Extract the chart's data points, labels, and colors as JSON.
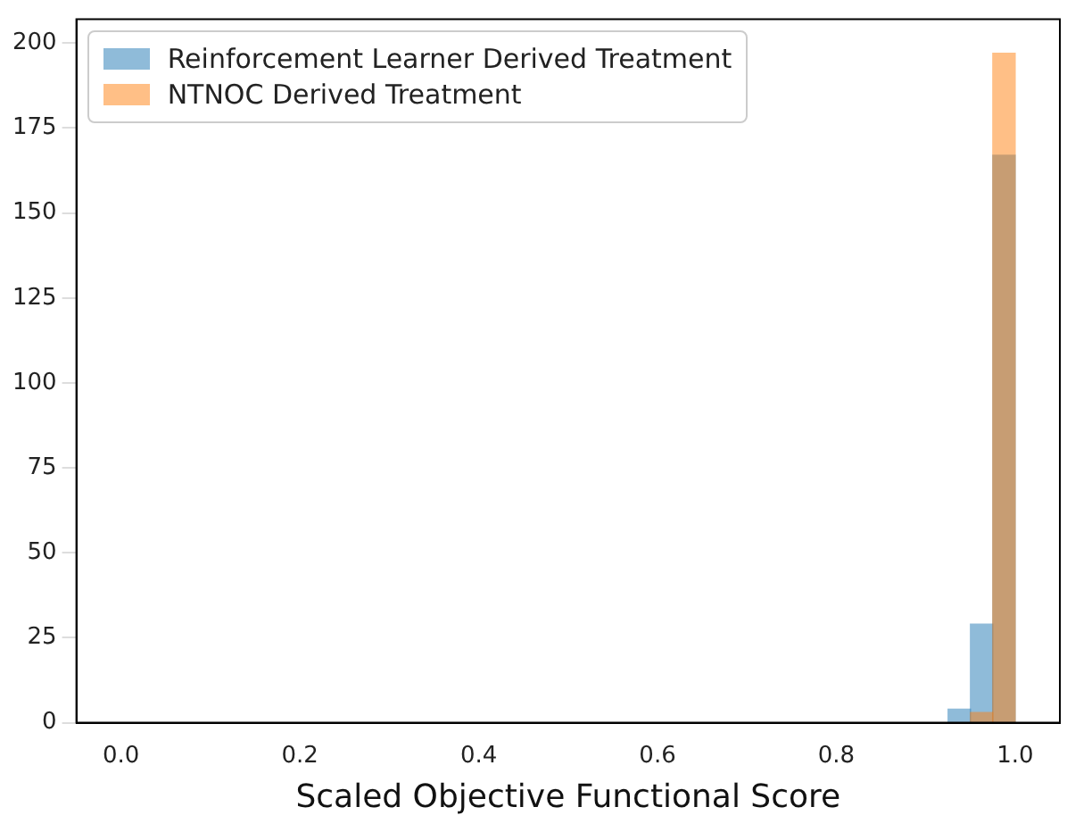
{
  "chart_data": {
    "type": "histogram",
    "xlabel": "Scaled Objective Functional Score",
    "bins": [
      0.925,
      0.95,
      0.975,
      1.0
    ],
    "series": [
      {
        "name": "Reinforcement Learner Derived Treatment",
        "color": "#1f77b4",
        "values": [
          4,
          29,
          167
        ]
      },
      {
        "name": "NTNOC Derived Treatment",
        "color": "#ff7f0e",
        "values": [
          0,
          3,
          197
        ]
      }
    ],
    "xlim": [
      -0.05,
      1.05
    ],
    "xticks": [
      {
        "value": 0,
        "label": "0.0"
      },
      {
        "value": 0.2,
        "label": "0.2"
      },
      {
        "value": 0.4,
        "label": "0.4"
      },
      {
        "value": 0.6,
        "label": "0.6"
      },
      {
        "value": 0.8,
        "label": "0.8"
      },
      {
        "value": 1.0,
        "label": "1.0"
      }
    ],
    "ylim": [
      0,
      207
    ],
    "yticks": [
      0,
      25,
      50,
      75,
      100,
      125,
      150,
      175,
      200
    ],
    "grid": false,
    "legend": "top left"
  }
}
